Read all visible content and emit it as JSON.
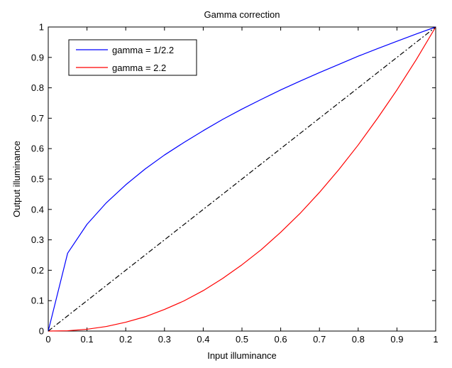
{
  "chart_data": {
    "type": "line",
    "title": "Gamma correction",
    "xlabel": "Input illuminance",
    "ylabel": "Output illuminance",
    "xlim": [
      0,
      1
    ],
    "ylim": [
      0,
      1
    ],
    "xticks": [
      "0",
      "0.1",
      "0.2",
      "0.3",
      "0.4",
      "0.5",
      "0.6",
      "0.7",
      "0.8",
      "0.9",
      "1"
    ],
    "yticks": [
      "0",
      "0.1",
      "0.2",
      "0.3",
      "0.4",
      "0.5",
      "0.6",
      "0.7",
      "0.8",
      "0.9",
      "1"
    ],
    "grid": false,
    "legend_position": "top-left",
    "x": [
      0,
      0.05,
      0.1,
      0.15,
      0.2,
      0.25,
      0.3,
      0.35,
      0.4,
      0.45,
      0.5,
      0.55,
      0.6,
      0.65,
      0.7,
      0.75,
      0.8,
      0.85,
      0.9,
      0.95,
      1
    ],
    "series": [
      {
        "name": "gamma = 1/2.2",
        "color": "#0000ff",
        "style": "solid",
        "values": [
          0,
          0.256,
          0.351,
          0.422,
          0.481,
          0.533,
          0.579,
          0.62,
          0.659,
          0.696,
          0.73,
          0.762,
          0.793,
          0.822,
          0.85,
          0.877,
          0.904,
          0.929,
          0.953,
          0.977,
          1
        ]
      },
      {
        "name": "gamma = 2.2",
        "color": "#ff0000",
        "style": "solid",
        "values": [
          0,
          0.001,
          0.006,
          0.015,
          0.029,
          0.047,
          0.071,
          0.099,
          0.133,
          0.173,
          0.218,
          0.268,
          0.325,
          0.387,
          0.456,
          0.531,
          0.612,
          0.7,
          0.793,
          0.893,
          1
        ]
      },
      {
        "color": "#000000",
        "style": "dash-dot",
        "values": [
          0,
          0.05,
          0.1,
          0.15,
          0.2,
          0.25,
          0.3,
          0.35,
          0.4,
          0.45,
          0.5,
          0.55,
          0.6,
          0.65,
          0.7,
          0.75,
          0.8,
          0.85,
          0.9,
          0.95,
          1
        ]
      }
    ]
  }
}
